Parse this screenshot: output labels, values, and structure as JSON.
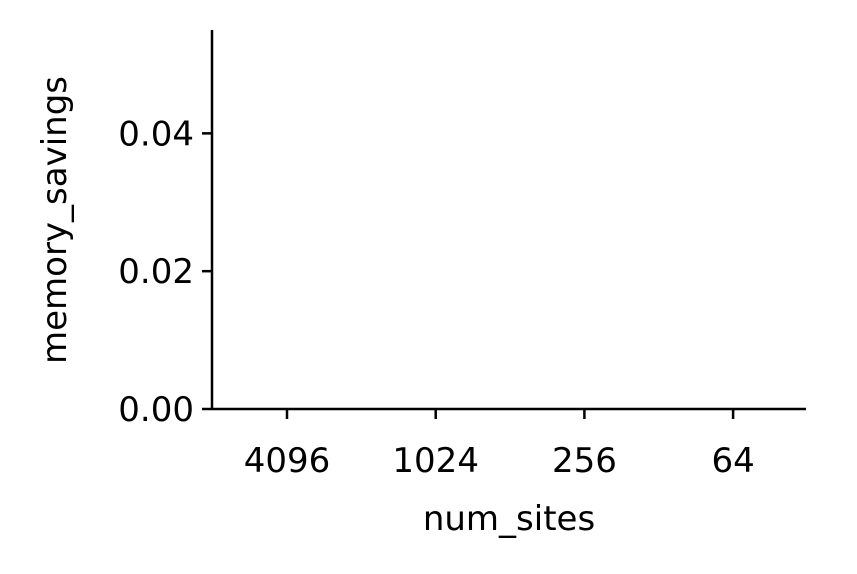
{
  "chart_data": {
    "type": "bar",
    "categories": [
      "4096",
      "1024",
      "256",
      "64"
    ],
    "values": [
      0,
      0,
      0,
      0
    ],
    "title": "",
    "xlabel": "num_sites",
    "ylabel": "memory_savings",
    "ylim": [
      0,
      0.055
    ],
    "yticks": [
      0.0,
      0.02,
      0.04
    ],
    "ytick_labels": [
      "0.00",
      "0.02",
      "0.04"
    ],
    "grid": false,
    "legend": "none",
    "colors": {
      "axis": "#000000",
      "background": "#ffffff"
    }
  }
}
